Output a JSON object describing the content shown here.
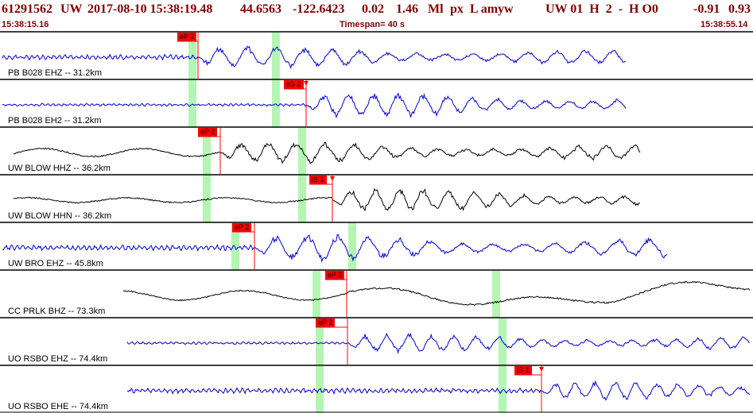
{
  "header": {
    "event_id": "61291562",
    "network": "UW",
    "origin_time": "2017-08-10 15:38:19.48",
    "latitude": "44.6563",
    "longitude": "-122.6423",
    "depth": "0.02",
    "magnitude": "1.46",
    "mag_type": "Ml",
    "flags": "px  L amyw",
    "solution": "UW 01  H  2  -  H O0",
    "extra1": "-0.91",
    "extra2": "0.93",
    "start_time": "15:38:15.16",
    "timespan": "Timespan=  40 s",
    "end_time": "15:38:55.14"
  },
  "colors": {
    "header_text": "#800000",
    "trace_blue": "#0000c8",
    "trace_black": "#000000",
    "pick_flag": "#ff0000",
    "pick_line": "#ff0000",
    "marker_bar": "#b4f5b4"
  },
  "traces": [
    {
      "label": "PB B028 EHZ -- 31.2km",
      "color": "blue",
      "pick": "eP 2",
      "pick_kind": "P"
    },
    {
      "label": "PB B028 EH2 -- 31.2km",
      "color": "blue",
      "pick": "eS 2",
      "pick_kind": "S"
    },
    {
      "label": "UW BLOW HHZ -- 36.2km",
      "color": "black",
      "pick": "eP 2",
      "pick_kind": "P"
    },
    {
      "label": "UW BLOW HHN -- 36.2km",
      "color": "black",
      "pick": "iS 1",
      "pick_kind": "S"
    },
    {
      "label": "UW BRO EHZ -- 45.8km",
      "color": "blue",
      "pick": "eP 2",
      "pick_kind": "P"
    },
    {
      "label": "CC PRLK BHZ -- 73.3km",
      "color": "black",
      "pick": "eP 2",
      "pick_kind": "P"
    },
    {
      "label": "UO RSBO EHZ -- 74.4km",
      "color": "blue",
      "pick": "eP 2",
      "pick_kind": "P"
    },
    {
      "label": "UO RSBO EHE -- 74.4km",
      "color": "blue",
      "pick": "iS 1",
      "pick_kind": "S"
    }
  ]
}
